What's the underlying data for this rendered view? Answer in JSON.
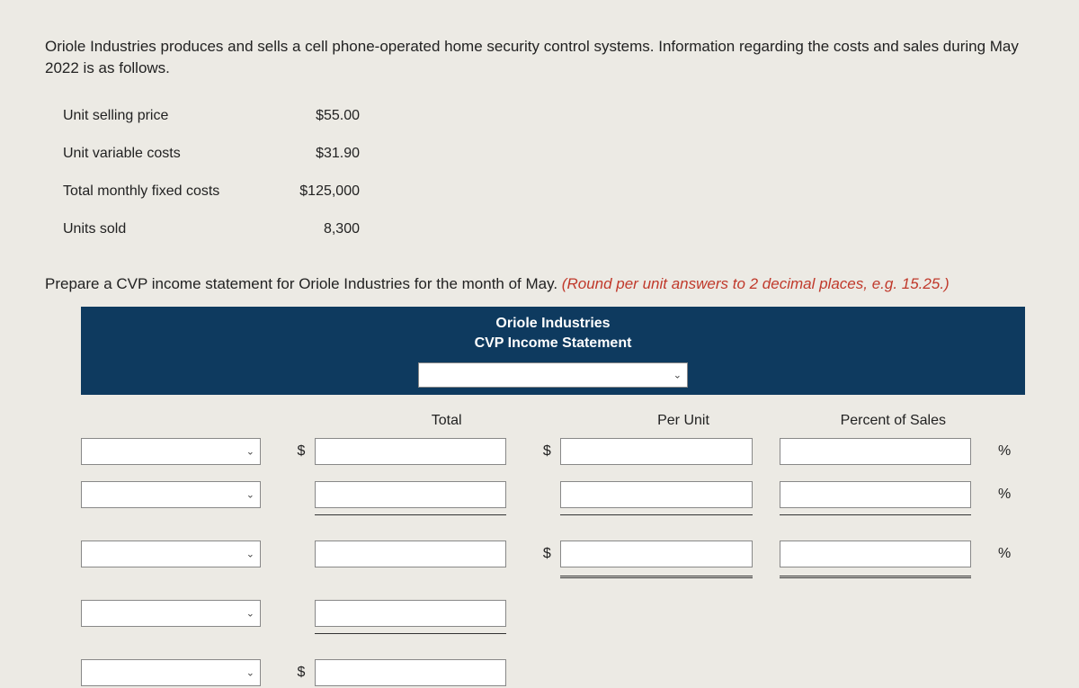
{
  "prompt": "Oriole Industries produces and sells a cell phone-operated home security control systems. Information regarding the costs and sales during May 2022 is as follows.",
  "info": {
    "rows": [
      {
        "label": "Unit selling price",
        "value": "$55.00"
      },
      {
        "label": "Unit variable costs",
        "value": "$31.90"
      },
      {
        "label": "Total monthly fixed costs",
        "value": "$125,000"
      },
      {
        "label": "Units sold",
        "value": "8,300"
      }
    ]
  },
  "instruction_main": "Prepare a CVP income statement for Oriole Industries for the month of May. ",
  "instruction_hint": "(Round per unit answers to 2 decimal places, e.g. 15.25.)",
  "statement": {
    "company": "Oriole Industries",
    "title": "CVP Income Statement",
    "columns": {
      "total": "Total",
      "per_unit": "Per Unit",
      "percent": "Percent of Sales"
    },
    "symbols": {
      "dollar": "$",
      "percent": "%"
    }
  },
  "colors": {
    "page_bg": "#eceae4",
    "header_bg": "#0e3a5f",
    "header_text": "#ffffff",
    "hint_text": "#c0392b",
    "body_text": "#222222",
    "input_border": "#888888",
    "input_bg": "#ffffff"
  }
}
